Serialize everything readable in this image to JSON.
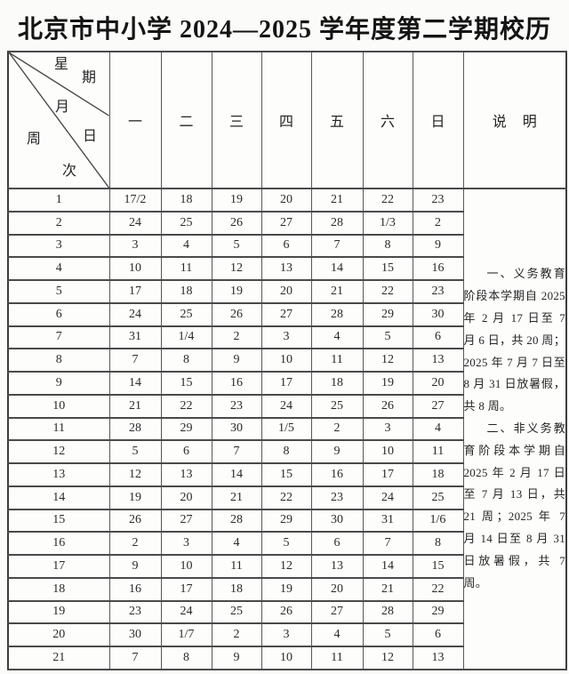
{
  "page": {
    "title": "北京市中小学 2024—2025 学年度第二学期校历"
  },
  "colors": {
    "background": "#fbfbfa",
    "table_background": "#fdfdfc",
    "border": "#4a4a4a",
    "text": "#222222"
  },
  "calendar": {
    "corner": {
      "xing": "星",
      "qi": "期",
      "yue": "月",
      "zhou": "周",
      "ri": "日",
      "ci": "次"
    },
    "day_headers": [
      "一",
      "二",
      "三",
      "四",
      "五",
      "六",
      "日"
    ],
    "notes_header": "说 明",
    "rows": [
      {
        "week": "1",
        "days": [
          "17/2",
          "18",
          "19",
          "20",
          "21",
          "22",
          "23"
        ]
      },
      {
        "week": "2",
        "days": [
          "24",
          "25",
          "26",
          "27",
          "28",
          "1/3",
          "2"
        ]
      },
      {
        "week": "3",
        "days": [
          "3",
          "4",
          "5",
          "6",
          "7",
          "8",
          "9"
        ]
      },
      {
        "week": "4",
        "days": [
          "10",
          "11",
          "12",
          "13",
          "14",
          "15",
          "16"
        ]
      },
      {
        "week": "5",
        "days": [
          "17",
          "18",
          "19",
          "20",
          "21",
          "22",
          "23"
        ]
      },
      {
        "week": "6",
        "days": [
          "24",
          "25",
          "26",
          "27",
          "28",
          "29",
          "30"
        ]
      },
      {
        "week": "7",
        "days": [
          "31",
          "1/4",
          "2",
          "3",
          "4",
          "5",
          "6"
        ]
      },
      {
        "week": "8",
        "days": [
          "7",
          "8",
          "9",
          "10",
          "11",
          "12",
          "13"
        ]
      },
      {
        "week": "9",
        "days": [
          "14",
          "15",
          "16",
          "17",
          "18",
          "19",
          "20"
        ]
      },
      {
        "week": "10",
        "days": [
          "21",
          "22",
          "23",
          "24",
          "25",
          "26",
          "27"
        ]
      },
      {
        "week": "11",
        "days": [
          "28",
          "29",
          "30",
          "1/5",
          "2",
          "3",
          "4"
        ]
      },
      {
        "week": "12",
        "days": [
          "5",
          "6",
          "7",
          "8",
          "9",
          "10",
          "11"
        ]
      },
      {
        "week": "13",
        "days": [
          "12",
          "13",
          "14",
          "15",
          "16",
          "17",
          "18"
        ]
      },
      {
        "week": "14",
        "days": [
          "19",
          "20",
          "21",
          "22",
          "23",
          "24",
          "25"
        ]
      },
      {
        "week": "15",
        "days": [
          "26",
          "27",
          "28",
          "29",
          "30",
          "31",
          "1/6"
        ]
      },
      {
        "week": "16",
        "days": [
          "2",
          "3",
          "4",
          "5",
          "6",
          "7",
          "8"
        ]
      },
      {
        "week": "17",
        "days": [
          "9",
          "10",
          "11",
          "12",
          "13",
          "14",
          "15"
        ]
      },
      {
        "week": "18",
        "days": [
          "16",
          "17",
          "18",
          "19",
          "20",
          "21",
          "22"
        ]
      },
      {
        "week": "19",
        "days": [
          "23",
          "24",
          "25",
          "26",
          "27",
          "28",
          "29"
        ]
      },
      {
        "week": "20",
        "days": [
          "30",
          "1/7",
          "2",
          "3",
          "4",
          "5",
          "6"
        ]
      },
      {
        "week": "21",
        "days": [
          "7",
          "8",
          "9",
          "10",
          "11",
          "12",
          "13"
        ]
      }
    ],
    "notes": [
      "一、义务教育阶段本学期自 2025 年 2 月 17 日至 7 月 6 日，共 20 周；2025 年 7 月 7 日至 8 月 31 日放暑假，共 8 周。",
      "二、非义务教育阶段本学期自 2025 年 2 月 17 日至 7 月 13 日，共 21 周；2025 年 7 月 14 日至 8 月 31 日放暑假，共 7 周。"
    ]
  }
}
